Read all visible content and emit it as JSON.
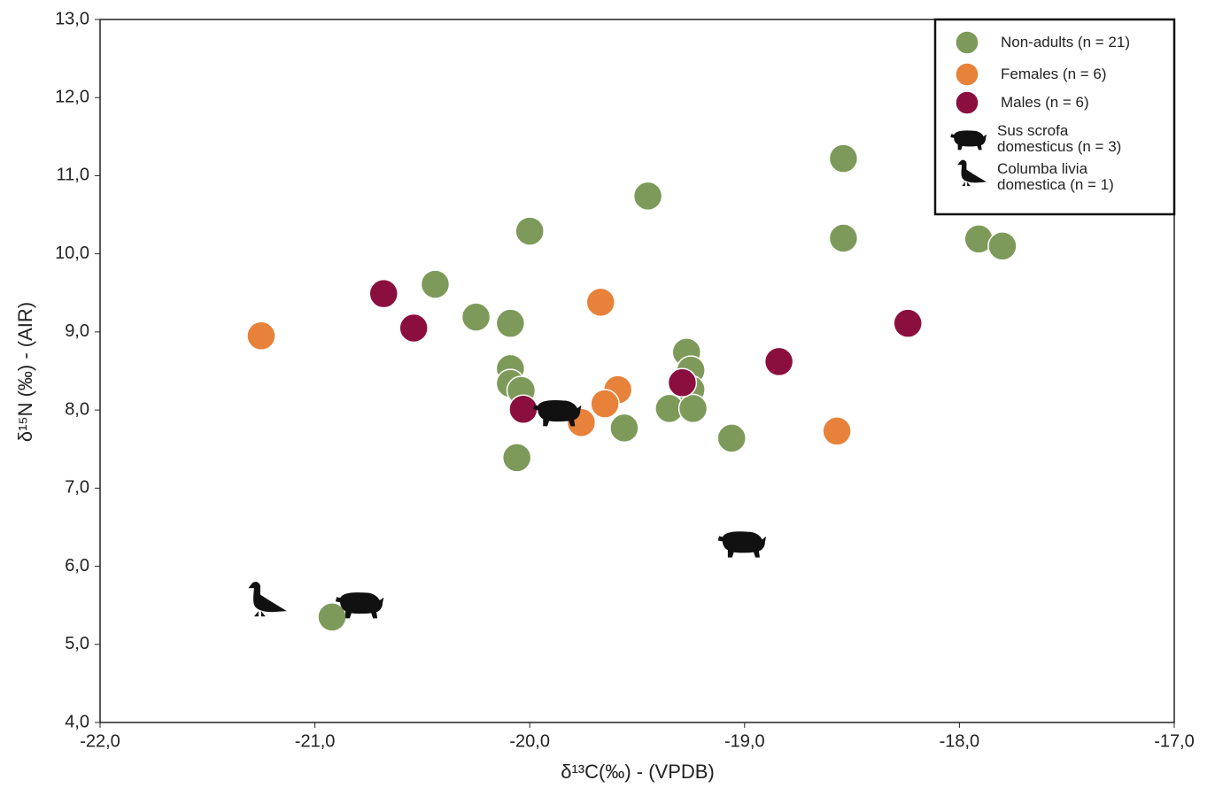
{
  "chart_data": {
    "type": "scatter",
    "xlabel": "δ¹³C(‰) - (VPDB)",
    "ylabel": "δ¹⁵N (‰) - (AIR)",
    "xlim": [
      -22,
      -17
    ],
    "ylim": [
      4,
      13
    ],
    "xticks": [
      {
        "value": -22,
        "label": "-22,0"
      },
      {
        "value": -21,
        "label": "-21,0"
      },
      {
        "value": -20,
        "label": "-20,0"
      },
      {
        "value": -19,
        "label": "-19,0"
      },
      {
        "value": -18,
        "label": "-18,0"
      },
      {
        "value": -17,
        "label": "-17,0"
      }
    ],
    "yticks": [
      {
        "value": 4,
        "label": "4,0"
      },
      {
        "value": 5,
        "label": "5,0"
      },
      {
        "value": 6,
        "label": "6,0"
      },
      {
        "value": 7,
        "label": "7,0"
      },
      {
        "value": 8,
        "label": "8,0"
      },
      {
        "value": 9,
        "label": "9,0"
      },
      {
        "value": 10,
        "label": "10,0"
      },
      {
        "value": 11,
        "label": "11,0"
      },
      {
        "value": 12,
        "label": "12,0"
      },
      {
        "value": 13,
        "label": "13,0"
      }
    ],
    "grid": false,
    "legend": "upper right",
    "series": [
      {
        "name": "Non-adults (n = 21)",
        "color": "#7d9a5a",
        "marker": "circle",
        "x": [
          -18.54,
          -19.45,
          -20.0,
          -18.54,
          -17.91,
          -17.8,
          -20.44,
          -20.25,
          -20.09,
          -20.09,
          -19.27,
          -19.25,
          -20.09,
          -20.04,
          -19.25,
          -19.35,
          -19.24,
          -19.56,
          -19.06,
          -20.06,
          -20.92
        ],
        "y": [
          11.22,
          10.74,
          10.29,
          10.2,
          10.19,
          10.1,
          9.61,
          9.19,
          9.11,
          8.53,
          8.74,
          8.51,
          8.34,
          8.25,
          8.26,
          8.02,
          8.02,
          7.77,
          7.64,
          7.39,
          5.35
        ]
      },
      {
        "name": "Females (n = 6)",
        "color": "#e8823a",
        "marker": "circle",
        "x": [
          -21.25,
          -19.67,
          -19.59,
          -19.65,
          -19.76,
          -18.57
        ],
        "y": [
          8.95,
          9.38,
          8.26,
          8.08,
          7.84,
          7.73
        ]
      },
      {
        "name": "Males (n = 6)",
        "color": "#8a0f3f",
        "marker": "circle",
        "x": [
          -20.68,
          -20.54,
          -20.03,
          -19.29,
          -18.84,
          -18.24
        ],
        "y": [
          9.49,
          9.05,
          8.01,
          8.35,
          8.62,
          9.11
        ]
      },
      {
        "name": "Sus scrofa domesticus (n = 3)",
        "color": "#111111",
        "marker": "pig",
        "x": [
          -19.87,
          -19.01,
          -20.79
        ],
        "y": [
          7.98,
          6.3,
          5.52
        ]
      },
      {
        "name": "Columba livia domestica (n = 1)",
        "color": "#111111",
        "marker": "pigeon",
        "x": [
          -21.24
        ],
        "y": [
          5.51
        ]
      }
    ]
  }
}
